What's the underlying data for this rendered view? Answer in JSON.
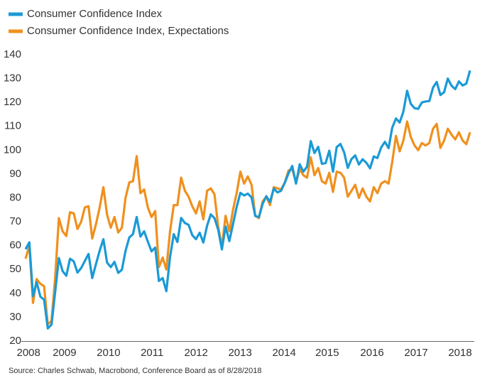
{
  "chart_data": {
    "type": "line",
    "source": "Source: Charles Schwab, Macrobond, Conference Board as of 8/28/2018",
    "x": [
      2008.583,
      2008.667,
      2008.75,
      2008.833,
      2008.917,
      2009,
      2009.083,
      2009.167,
      2009.25,
      2009.333,
      2009.417,
      2009.5,
      2009.583,
      2009.667,
      2009.75,
      2009.833,
      2009.917,
      2010,
      2010.083,
      2010.167,
      2010.25,
      2010.333,
      2010.417,
      2010.5,
      2010.583,
      2010.667,
      2010.75,
      2010.833,
      2010.917,
      2011,
      2011.083,
      2011.167,
      2011.25,
      2011.333,
      2011.417,
      2011.5,
      2011.583,
      2011.667,
      2011.75,
      2011.833,
      2011.917,
      2012,
      2012.083,
      2012.167,
      2012.25,
      2012.333,
      2012.417,
      2012.5,
      2012.583,
      2012.667,
      2012.75,
      2012.833,
      2012.917,
      2013,
      2013.083,
      2013.167,
      2013.25,
      2013.333,
      2013.417,
      2013.5,
      2013.583,
      2013.667,
      2013.75,
      2013.833,
      2013.917,
      2014,
      2014.083,
      2014.167,
      2014.25,
      2014.333,
      2014.417,
      2014.5,
      2014.583,
      2014.667,
      2014.75,
      2014.833,
      2014.917,
      2015,
      2015.083,
      2015.167,
      2015.25,
      2015.333,
      2015.417,
      2015.5,
      2015.583,
      2015.667,
      2015.75,
      2015.833,
      2015.917,
      2016,
      2016.083,
      2016.167,
      2016.25,
      2016.333,
      2016.417,
      2016.5,
      2016.583,
      2016.667,
      2016.75,
      2016.833,
      2016.917,
      2017,
      2017.083,
      2017.167,
      2017.25,
      2017.333,
      2017.417,
      2017.5,
      2017.583,
      2017.667,
      2017.75,
      2017.833,
      2017.917,
      2018,
      2018.083,
      2018.167,
      2018.25,
      2018.333,
      2018.417,
      2018.5,
      2018.583
    ],
    "series": [
      {
        "name": "Consumer Confidence Index",
        "color": "#1a9ad6",
        "values": [
          58.5,
          61.4,
          38.8,
          44.7,
          38.6,
          37.4,
          25.3,
          26.9,
          40.8,
          54.8,
          49.3,
          47.4,
          54.5,
          53.4,
          48.7,
          50.6,
          53.6,
          56.5,
          46.4,
          52.3,
          57.9,
          62.7,
          52.9,
          51.0,
          53.2,
          48.6,
          49.9,
          57.8,
          63.4,
          64.8,
          72.0,
          63.8,
          66.0,
          61.7,
          57.6,
          59.2,
          45.2,
          46.4,
          40.9,
          55.2,
          64.8,
          61.5,
          71.6,
          69.5,
          68.7,
          64.4,
          62.7,
          65.4,
          61.3,
          68.4,
          73.1,
          71.5,
          66.7,
          58.4,
          68.0,
          61.9,
          69.0,
          76.2,
          82.1,
          81.0,
          81.8,
          80.2,
          72.4,
          72.0,
          77.5,
          80.7,
          78.3,
          83.9,
          82.3,
          83.0,
          86.4,
          90.3,
          93.4,
          86.0,
          94.1,
          91.0,
          93.1,
          103.8,
          98.8,
          101.4,
          94.3,
          94.6,
          99.8,
          91.0,
          101.3,
          102.6,
          99.1,
          92.6,
          96.3,
          97.8,
          94.0,
          96.2,
          94.7,
          92.4,
          97.4,
          96.7,
          101.1,
          103.5,
          100.8,
          109.4,
          113.3,
          111.6,
          116.1,
          124.9,
          119.4,
          117.6,
          117.3,
          120.0,
          120.4,
          120.6,
          126.2,
          128.6,
          123.1,
          124.3,
          130.0,
          127.0,
          125.6,
          128.8,
          127.1,
          127.9,
          133.4
        ]
      },
      {
        "name": "Consumer Confidence Index, Expectations",
        "color": "#f0901e",
        "values": [
          54.5,
          60,
          36,
          46,
          44,
          43,
          27,
          28.5,
          47,
          71.5,
          66,
          64,
          74,
          73.5,
          67,
          70,
          76,
          76.5,
          63,
          69,
          76,
          84.5,
          73,
          67.5,
          72,
          65.5,
          67.5,
          80,
          86.5,
          87,
          97.5,
          82,
          83.5,
          76,
          72,
          74.5,
          51,
          55,
          50,
          66,
          77,
          77,
          88.5,
          83,
          80.5,
          76.5,
          73.5,
          78.5,
          71,
          83,
          84,
          81.5,
          68,
          59.5,
          72.5,
          66,
          75,
          82,
          91,
          86,
          89,
          85.5,
          72.5,
          71.5,
          78.5,
          80.5,
          77,
          84.5,
          84,
          83.5,
          86.5,
          91.5,
          92,
          86.5,
          92,
          89.5,
          88.5,
          97,
          89.5,
          92.5,
          87,
          86,
          90.5,
          82.5,
          91,
          90.5,
          88.5,
          80.5,
          83,
          85.5,
          80,
          84,
          80.5,
          78.5,
          84.5,
          82,
          86,
          87,
          86,
          95,
          106,
          99.5,
          104,
          112,
          105.5,
          102,
          100,
          103,
          102,
          103,
          109,
          111,
          101,
          104,
          109,
          106.5,
          104.5,
          107.5,
          104,
          102.5,
          107.5
        ]
      }
    ],
    "xlim": [
      2008.583,
      2018.583
    ],
    "xticks": [
      {
        "value": 2008.65,
        "label": "2008"
      },
      {
        "value": 2009.46,
        "label": "2009"
      },
      {
        "value": 2010.45,
        "label": "2010"
      },
      {
        "value": 2011.43,
        "label": "2011"
      },
      {
        "value": 2012.42,
        "label": "2012"
      },
      {
        "value": 2013.41,
        "label": "2013"
      },
      {
        "value": 2014.4,
        "label": "2014"
      },
      {
        "value": 2015.37,
        "label": "2015"
      },
      {
        "value": 2016.38,
        "label": "2016"
      },
      {
        "value": 2017.37,
        "label": "2017"
      },
      {
        "value": 2018.36,
        "label": "2018"
      }
    ],
    "ylim": [
      20,
      140
    ],
    "yticks": [
      20,
      30,
      40,
      50,
      60,
      70,
      80,
      90,
      100,
      110,
      120,
      130,
      140
    ],
    "grid": false,
    "legend": "top-left"
  }
}
